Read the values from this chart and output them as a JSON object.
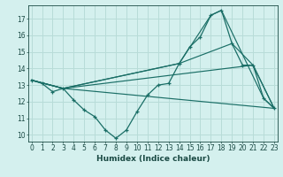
{
  "xlabel": "Humidex (Indice chaleur)",
  "bg_color": "#d4f0ee",
  "grid_color": "#b8dcd8",
  "line_color": "#1a6e66",
  "lines": [
    {
      "x": [
        0,
        1,
        2,
        3,
        4,
        5,
        6,
        7,
        8,
        9,
        10,
        11,
        12,
        13,
        14,
        15,
        16,
        17,
        18,
        19,
        20,
        21,
        22,
        23
      ],
      "y": [
        13.3,
        13.1,
        12.6,
        12.8,
        12.1,
        11.5,
        11.1,
        10.3,
        9.8,
        10.3,
        11.4,
        12.4,
        13.0,
        13.1,
        14.3,
        15.3,
        15.9,
        17.2,
        17.5,
        15.5,
        14.2,
        14.2,
        12.2,
        11.6
      ],
      "marker": true
    },
    {
      "x": [
        0,
        3,
        23
      ],
      "y": [
        13.3,
        12.8,
        11.6
      ],
      "marker": false
    },
    {
      "x": [
        0,
        3,
        21,
        23
      ],
      "y": [
        13.3,
        12.8,
        14.2,
        11.6
      ],
      "marker": false
    },
    {
      "x": [
        0,
        3,
        14,
        19,
        21,
        23
      ],
      "y": [
        13.3,
        12.8,
        14.3,
        15.5,
        14.2,
        11.6
      ],
      "marker": false
    },
    {
      "x": [
        0,
        3,
        14,
        17,
        18,
        22,
        23
      ],
      "y": [
        13.3,
        12.8,
        14.3,
        17.2,
        17.5,
        12.2,
        11.6
      ],
      "marker": false
    }
  ],
  "xlim": [
    -0.3,
    23.3
  ],
  "ylim": [
    9.6,
    17.8
  ],
  "yticks": [
    10,
    11,
    12,
    13,
    14,
    15,
    16,
    17
  ],
  "xticks": [
    0,
    1,
    2,
    3,
    4,
    5,
    6,
    7,
    8,
    9,
    10,
    11,
    12,
    13,
    14,
    15,
    16,
    17,
    18,
    19,
    20,
    21,
    22,
    23
  ],
  "tick_fontsize": 5.5,
  "xlabel_fontsize": 6.5
}
